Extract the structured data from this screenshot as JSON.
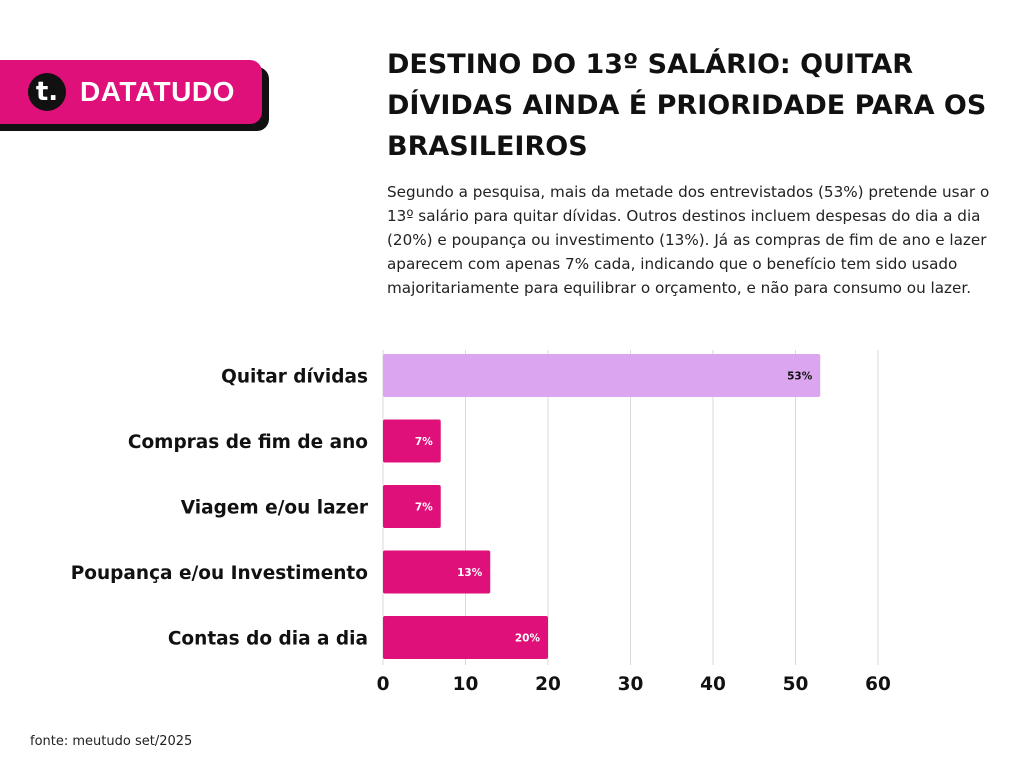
{
  "brand": {
    "logo_letter": "t.",
    "name": "DATATUDO",
    "accent_color": "#e0107a",
    "highlight_color": "#dba6ef"
  },
  "title": "DESTINO DO 13º SALÁRIO: QUITAR DÍVIDAS AINDA É PRIORIDADE PARA OS BRASILEIROS",
  "subtitle": "Segundo a pesquisa, mais da metade dos entrevistados (53%) pretende usar o 13º salário para quitar dívidas. Outros destinos incluem despesas do dia a dia (20%) e poupança ou investimento (13%). Já as compras de fim de ano e lazer aparecem com apenas 7% cada, indicando que o benefício tem sido usado majoritariamente para equilibrar o orçamento, e não para consumo ou lazer.",
  "source": "fonte: meutudo set/2025",
  "chart_data": {
    "type": "bar",
    "orientation": "horizontal",
    "categories": [
      "Quitar dívidas",
      "Compras de fim de ano",
      "Viagem e/ou lazer",
      "Poupança e/ou Investimento",
      "Contas do dia a dia"
    ],
    "values": [
      53,
      7,
      7,
      13,
      20
    ],
    "data_labels": [
      "53%",
      "7%",
      "7%",
      "13%",
      "20%"
    ],
    "bar_colors": [
      "#dba6ef",
      "#e0107a",
      "#e0107a",
      "#e0107a",
      "#e0107a"
    ],
    "label_colors": [
      "#111111",
      "#ffffff",
      "#ffffff",
      "#ffffff",
      "#ffffff"
    ],
    "xlim": [
      0,
      60
    ],
    "xticks": [
      0,
      10,
      20,
      30,
      40,
      50,
      60
    ],
    "grid": "vertical",
    "legend": "none"
  }
}
